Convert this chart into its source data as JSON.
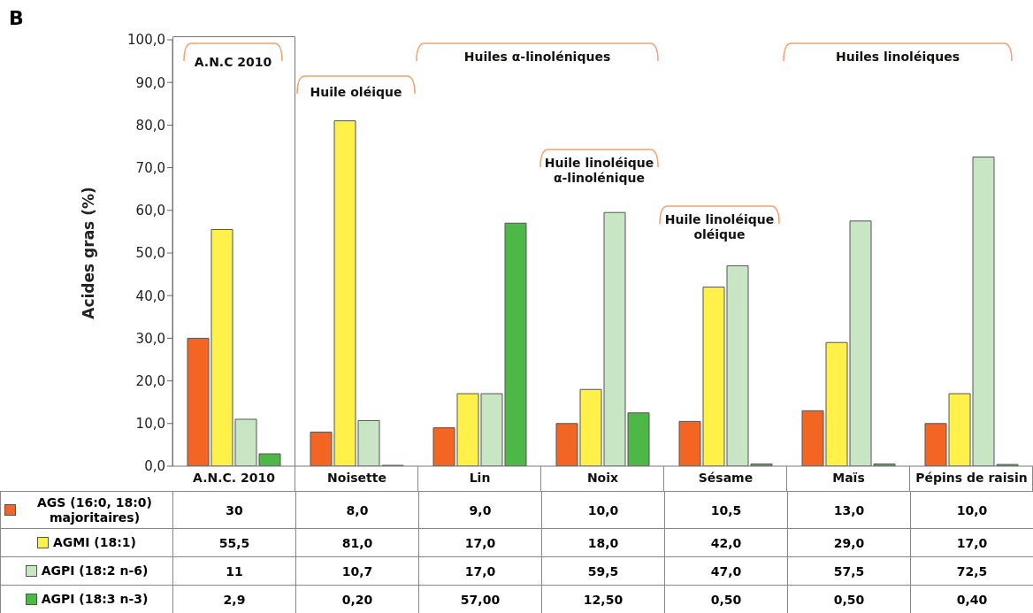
{
  "chart_data": {
    "type": "bar",
    "ylabel": "Acides gras (%)",
    "categories": [
      "A.N.C. 2010",
      "Noisette",
      "Lin",
      "Noix",
      "Sésame",
      "Maïs",
      "Pépins de raisin"
    ],
    "series": [
      {
        "name": "AGS (16:0, 18:0) majoritaires)",
        "color": "#f26522",
        "values": [
          30,
          8.0,
          9.0,
          10.0,
          10.5,
          13.0,
          10.0
        ],
        "value_labels": [
          "30",
          "8,0",
          "9,0",
          "10,0",
          "10,5",
          "13,0",
          "10,0"
        ]
      },
      {
        "name": "AGMI (18:1)",
        "color": "#fff04a",
        "values": [
          55.5,
          81.0,
          17.0,
          18.0,
          42.0,
          29.0,
          17.0
        ],
        "value_labels": [
          "55,5",
          "81,0",
          "17,0",
          "18,0",
          "42,0",
          "29,0",
          "17,0"
        ]
      },
      {
        "name": "AGPI (18:2 n-6)",
        "color": "#c8e6c4",
        "values": [
          11,
          10.7,
          17.0,
          59.5,
          47.0,
          57.5,
          72.5
        ],
        "value_labels": [
          "11",
          "10,7",
          "17,0",
          "59,5",
          "47,0",
          "57,5",
          "72,5"
        ]
      },
      {
        "name": "AGPI (18:3 n-3)",
        "color": "#4db848",
        "values": [
          2.9,
          0.2,
          57.0,
          12.5,
          0.5,
          0.5,
          0.4
        ],
        "value_labels": [
          "2,9",
          "0,20",
          "57,00",
          "12,50",
          "0,50",
          "0,50",
          "0,40"
        ]
      }
    ],
    "ylim": [
      0,
      100
    ],
    "yticks": [
      {
        "value": 0,
        "label": "0,0"
      },
      {
        "value": 10,
        "label": "10,0"
      },
      {
        "value": 20,
        "label": "20,0"
      },
      {
        "value": 30,
        "label": "30,0"
      },
      {
        "value": 40,
        "label": "40,0"
      },
      {
        "value": 50,
        "label": "50,0"
      },
      {
        "value": 60,
        "label": "60,0"
      },
      {
        "value": 70,
        "label": "70,0"
      },
      {
        "value": 80,
        "label": "80,0"
      },
      {
        "value": 90,
        "label": "90,0"
      },
      {
        "value": 100,
        "label": "100,0"
      }
    ],
    "grid": false,
    "legend": "bottom left",
    "annotations": [
      "B",
      "A.N.C 2010",
      "Huile oléique",
      "Huiles α-linoléniques",
      "Huile linoléique α-linolénique",
      "Huile linoléique oléique",
      "Huiles linoléiques"
    ]
  }
}
